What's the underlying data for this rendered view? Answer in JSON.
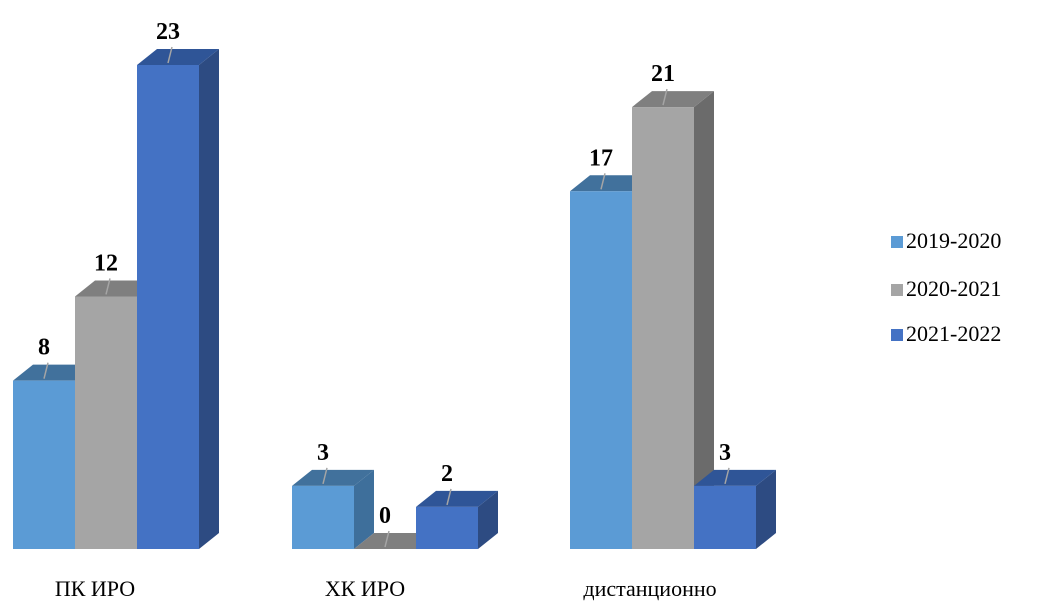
{
  "chart_data": {
    "type": "bar",
    "categories": [
      "ПК ИРО",
      "ХК ИРО",
      "дистанционно"
    ],
    "series": [
      {
        "name": "2019-2020",
        "values": [
          8,
          3,
          17
        ],
        "color": "#5B9BD5",
        "side_color": "#3E6F9B",
        "top_color": "#41719C"
      },
      {
        "name": "2020-2021",
        "values": [
          12,
          0,
          21
        ],
        "color": "#A5A5A5",
        "side_color": "#6B6B6B",
        "top_color": "#7F7F7F"
      },
      {
        "name": "2021-2022",
        "values": [
          23,
          2,
          3
        ],
        "color": "#4472C4",
        "side_color": "#2D4B82",
        "top_color": "#2F5597"
      }
    ],
    "ylim": [
      0,
      23
    ],
    "grid": false,
    "legend_position": "right",
    "data_labels": true,
    "style": "3d-column"
  }
}
